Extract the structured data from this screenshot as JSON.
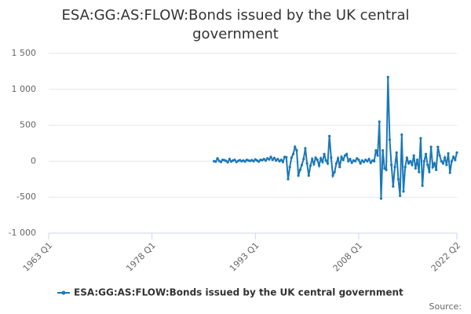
{
  "chart_data": {
    "type": "line",
    "title": "ESA:GG:AS:FLOW:Bonds issued by the UK central government",
    "source": "Source:",
    "categories": [
      "1963 Q1",
      null,
      null,
      null,
      null,
      null,
      null,
      null,
      null,
      null,
      null,
      null,
      null,
      null,
      null,
      null,
      null,
      null,
      null,
      null,
      null,
      null,
      null,
      null,
      null,
      null,
      null,
      null,
      null,
      null,
      null,
      null,
      null,
      null,
      null,
      null,
      null,
      null,
      null,
      null,
      null,
      null,
      null,
      null,
      null,
      null,
      null,
      null,
      null,
      null,
      null,
      null,
      null,
      null,
      null,
      null,
      null,
      null,
      null,
      null,
      "1978 Q1",
      null,
      null,
      null,
      null,
      null,
      null,
      null,
      null,
      null,
      null,
      null,
      null,
      null,
      null,
      null,
      null,
      null,
      null,
      null,
      null,
      null,
      null,
      null,
      null,
      null,
      null,
      null,
      null,
      null,
      null,
      null,
      null,
      null,
      null,
      null,
      null,
      null,
      null,
      null,
      null,
      null,
      null,
      null,
      null,
      null,
      null,
      null,
      null,
      null,
      null,
      null,
      null,
      null,
      null,
      null,
      null,
      null,
      null,
      null,
      "1993 Q1",
      null,
      null,
      null,
      null,
      null,
      null,
      null,
      null,
      null,
      null,
      null,
      null,
      null,
      null,
      null,
      null,
      null,
      null,
      null,
      null,
      null,
      null,
      null,
      null,
      null,
      null,
      null,
      null,
      null,
      null,
      null,
      null,
      null,
      null,
      null,
      null,
      null,
      null,
      null,
      null,
      null,
      null,
      null,
      null,
      null,
      null,
      null,
      null,
      null,
      null,
      null,
      null,
      null,
      null,
      null,
      null,
      null,
      null,
      null,
      "2008 Q1",
      null,
      null,
      null,
      null,
      null,
      null,
      null,
      null,
      null,
      null,
      null,
      null,
      null,
      null,
      null,
      null,
      null,
      null,
      null,
      null,
      null,
      null,
      null,
      null,
      null,
      null,
      null,
      null,
      null,
      null,
      null,
      null,
      null,
      null,
      null,
      null,
      null,
      null,
      null,
      null,
      null,
      null,
      null,
      null,
      null,
      null,
      null,
      null,
      null,
      null,
      null,
      null,
      null,
      null,
      null,
      null,
      "2022 Q2"
    ],
    "series": [
      {
        "name": "ESA:GG:AS:FLOW:Bonds issued by the UK central government",
        "color": "#1a78b8",
        "values": [
          null,
          null,
          null,
          null,
          null,
          null,
          null,
          null,
          null,
          null,
          null,
          null,
          null,
          null,
          null,
          null,
          null,
          null,
          null,
          null,
          null,
          null,
          null,
          null,
          null,
          null,
          null,
          null,
          null,
          null,
          null,
          null,
          null,
          null,
          null,
          null,
          null,
          null,
          null,
          null,
          null,
          null,
          null,
          null,
          null,
          null,
          null,
          null,
          null,
          null,
          null,
          null,
          null,
          null,
          null,
          null,
          null,
          null,
          null,
          null,
          null,
          null,
          null,
          null,
          null,
          null,
          null,
          null,
          null,
          null,
          null,
          null,
          null,
          null,
          null,
          null,
          null,
          null,
          null,
          null,
          null,
          null,
          null,
          null,
          null,
          null,
          null,
          null,
          null,
          null,
          null,
          null,
          null,
          null,
          null,
          null,
          0,
          -5,
          40,
          5,
          -10,
          20,
          15,
          5,
          -15,
          30,
          -5,
          10,
          20,
          -10,
          5,
          15,
          0,
          10,
          -5,
          20,
          10,
          5,
          15,
          0,
          25,
          10,
          -5,
          20,
          15,
          30,
          10,
          40,
          25,
          60,
          20,
          45,
          10,
          30,
          0,
          20,
          -10,
          60,
          55,
          -250,
          -80,
          50,
          100,
          200,
          150,
          -200,
          -120,
          -50,
          30,
          180,
          -30,
          -200,
          -60,
          30,
          -40,
          50,
          20,
          -60,
          40,
          -10,
          100,
          10,
          -30,
          350,
          50,
          -200,
          -150,
          -30,
          40,
          -80,
          60,
          20,
          80,
          100,
          0,
          30,
          -20,
          10,
          0,
          40,
          20,
          -30,
          10,
          -10,
          20,
          0,
          30,
          -20,
          10,
          0,
          150,
          80,
          550,
          -520,
          150,
          -100,
          -120,
          1170,
          300,
          -50,
          -350,
          -80,
          120,
          -250,
          -480,
          370,
          -420,
          -80,
          50,
          -30,
          0,
          -50,
          80,
          -100,
          20,
          -150,
          320,
          -340,
          0,
          100,
          -50,
          -150,
          200,
          -80,
          -30,
          -120,
          200,
          80,
          0,
          -30,
          50,
          -50,
          110,
          -160,
          0,
          60,
          20,
          120
        ]
      }
    ],
    "ylim": [
      -1000,
      1500
    ],
    "yticks": [
      {
        "value": -1000,
        "label": "-1 000"
      },
      -500,
      0,
      500,
      {
        "value": 1000,
        "label": "1 000"
      },
      {
        "value": 1500,
        "label": "1 500"
      }
    ],
    "grid": true,
    "legend": "bottom"
  }
}
